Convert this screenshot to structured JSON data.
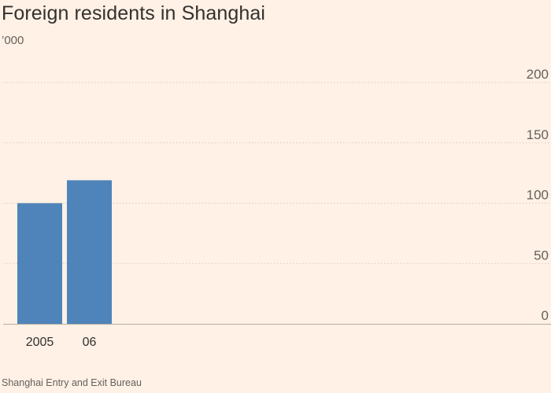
{
  "chart_data": {
    "type": "bar",
    "title": "Foreign residents in Shanghai",
    "unit_label": "’000",
    "categories": [
      "2005",
      "06"
    ],
    "values": [
      100,
      119
    ],
    "ylim": [
      0,
      200
    ],
    "yticks": [
      0,
      50,
      100,
      150,
      200
    ],
    "xlabel": "",
    "ylabel": "’000",
    "grid": true,
    "source": "Shanghai Entry and Exit Bureau",
    "colors": {
      "bar": "#4e84b9",
      "grid": "#d9cbbf",
      "axis": "#b8aca2",
      "background": "#fff1e5"
    }
  }
}
